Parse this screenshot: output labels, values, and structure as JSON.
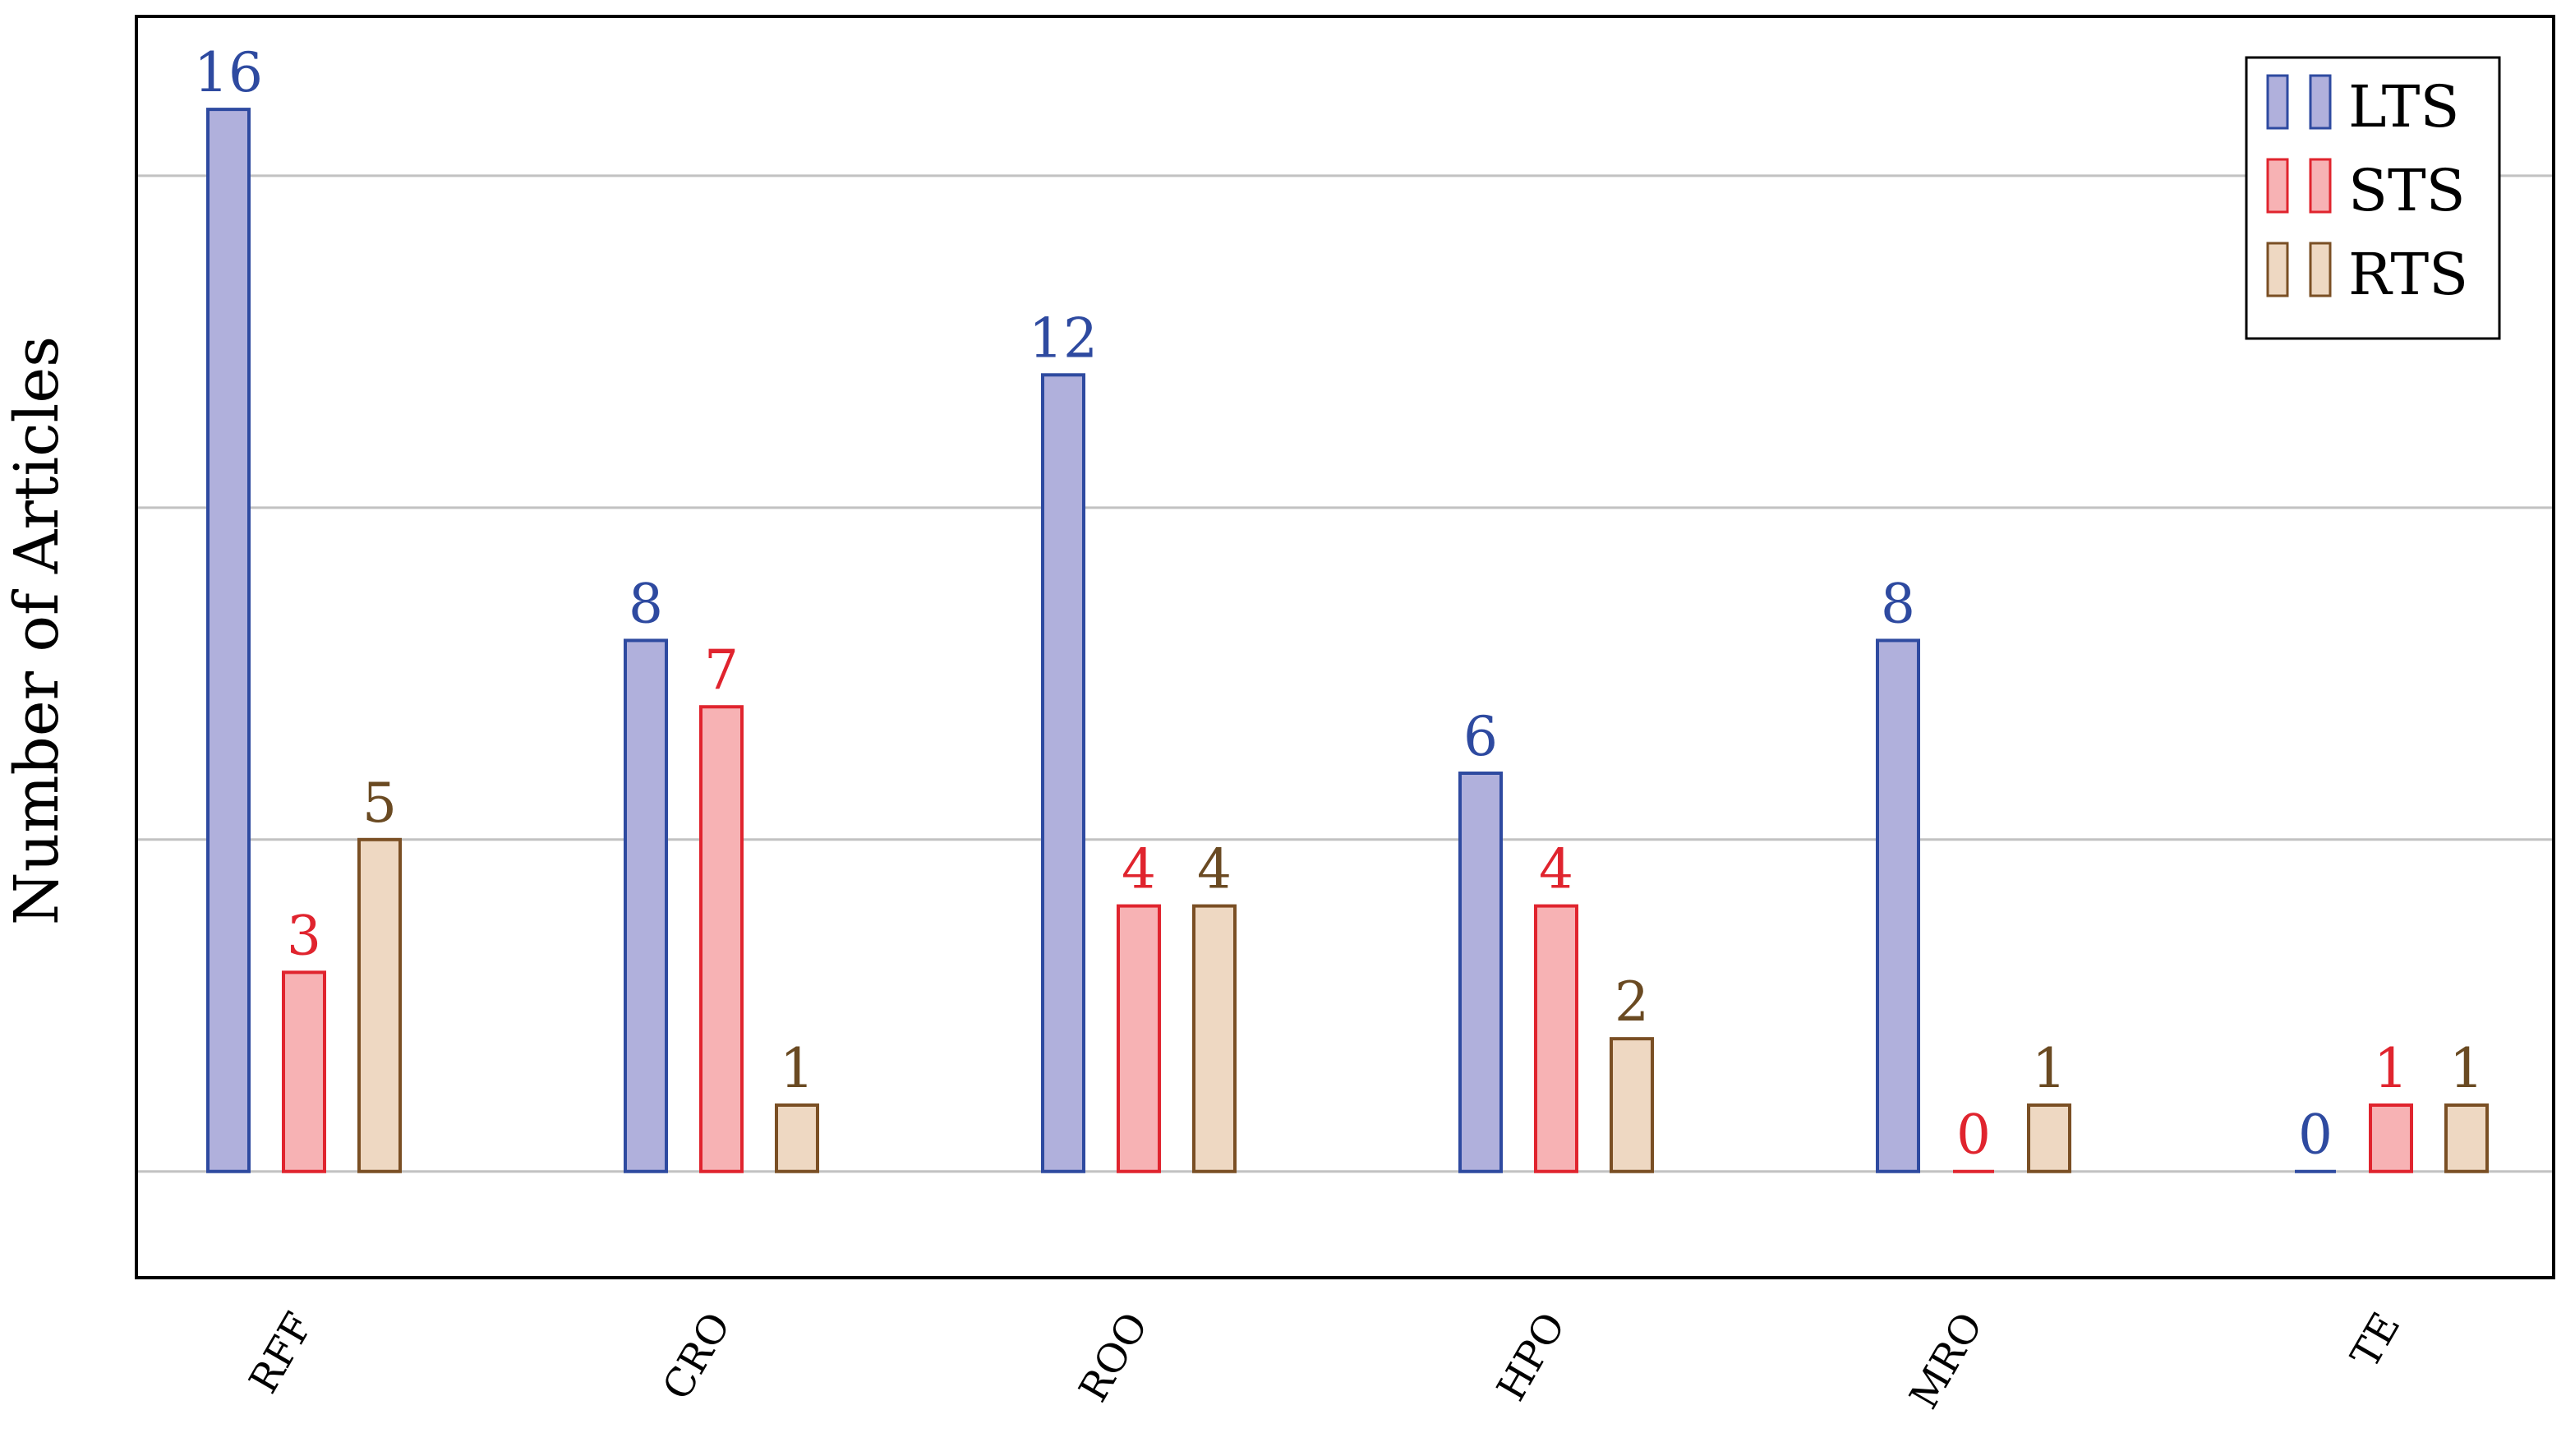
{
  "chart_data": {
    "type": "bar",
    "title": "",
    "xlabel": "",
    "ylabel": "Number of Articles",
    "categories": [
      "RFF",
      "CRO",
      "ROO",
      "HPO",
      "MRO",
      "TE"
    ],
    "series": [
      {
        "name": "LTS",
        "values": [
          16,
          8,
          12,
          6,
          8,
          0
        ],
        "stroke": "#2e4aa0",
        "fill": "#b0b0dc",
        "label_color": "#2e4aa0"
      },
      {
        "name": "STS",
        "values": [
          3,
          7,
          4,
          4,
          0,
          1
        ],
        "stroke": "#e0242e",
        "fill": "#f7b2b4",
        "label_color": "#e0242e"
      },
      {
        "name": "RTS",
        "values": [
          5,
          1,
          4,
          2,
          1,
          1
        ],
        "stroke": "#7a4f24",
        "fill": "#eed8c2",
        "label_color": "#6a4a22"
      }
    ],
    "ylim": [
      -1.6,
      17.4
    ],
    "gridlines": [
      0,
      5,
      10,
      15
    ],
    "y_tick_labels_visible": false,
    "grid": true,
    "legend": {
      "position": "top-right"
    },
    "colors": {
      "grid": "#c2c2c2",
      "frame": "#000000",
      "text": "#000000"
    }
  }
}
